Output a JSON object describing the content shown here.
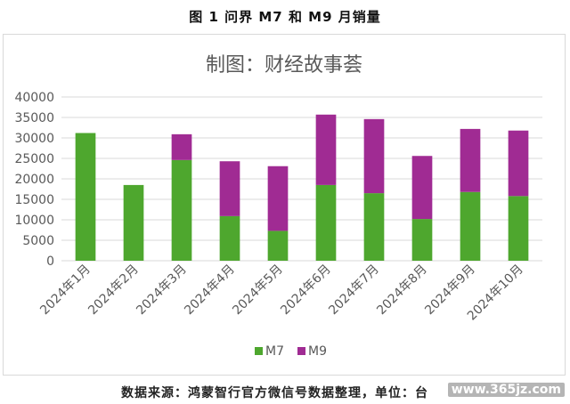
{
  "caption": "图 1 问界 M7 和 M9 月销量",
  "source": "数据来源：鸿蒙智行官方微信号数据整理，单位：台",
  "watermark": "www.365jz.com",
  "colors": {
    "m7": "#4ea72e",
    "m9": "#a02b93",
    "grid": "#d9d9d9",
    "axis": "#595959"
  },
  "chart_data": {
    "type": "bar",
    "stacked": true,
    "title": "制图：财经故事荟",
    "xlabel": "",
    "ylabel": "",
    "ylim": [
      0,
      40000
    ],
    "yticks": [
      0,
      5000,
      10000,
      15000,
      20000,
      25000,
      30000,
      35000,
      40000
    ],
    "grid": true,
    "legend": "bottom",
    "categories": [
      "2024年1月",
      "2024年2月",
      "2024年3月",
      "2024年4月",
      "2024年5月",
      "2024年6月",
      "2024年7月",
      "2024年8月",
      "2024年9月",
      "2024年10月"
    ],
    "series": [
      {
        "name": "M7",
        "values": [
          31200,
          18500,
          24600,
          10900,
          7300,
          18500,
          16500,
          10200,
          16800,
          15800
        ]
      },
      {
        "name": "M9",
        "values": [
          0,
          0,
          6300,
          13400,
          15800,
          17200,
          18100,
          15400,
          15400,
          16000
        ]
      }
    ]
  }
}
